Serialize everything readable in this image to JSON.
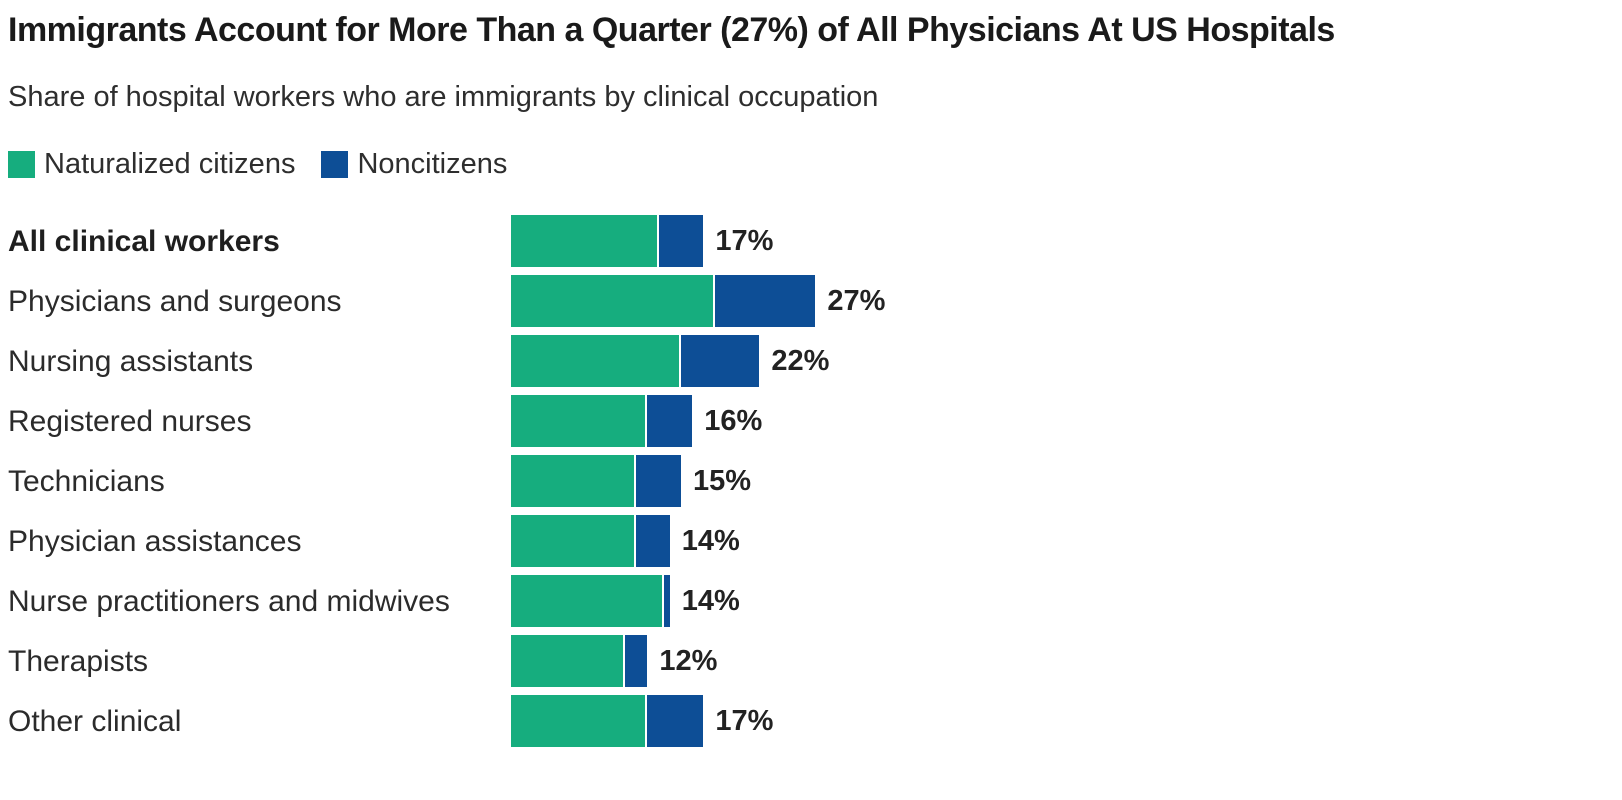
{
  "title": "Immigrants Account for More Than a Quarter (27%) of All Physicians At US Hospitals",
  "subtitle": "Share of hospital workers who are immigrants by clinical occupation",
  "chart_data": {
    "type": "bar",
    "orientation": "horizontal",
    "stacked": true,
    "legend_position": "top",
    "axes_visible": false,
    "value_suffix": "%",
    "categories": [
      "All clinical workers",
      "Physicians and surgeons",
      "Nursing assistants",
      "Registered nurses",
      "Technicians",
      "Physician assistances",
      "Nurse practitioners and midwives",
      "Therapists",
      "Other clinical"
    ],
    "series": [
      {
        "name": "Naturalized citizens",
        "color": "#16ad7e",
        "values": [
          13,
          18,
          15,
          12,
          11,
          11,
          13.5,
          10,
          12
        ]
      },
      {
        "name": "Noncitizens",
        "color": "#0d4e96",
        "values": [
          4,
          9,
          7,
          4,
          4,
          3,
          0.5,
          2,
          5
        ]
      }
    ],
    "totals": [
      17,
      27,
      22,
      16,
      15,
      14,
      14,
      12,
      17
    ],
    "total_labels": [
      "17%",
      "27%",
      "22%",
      "16%",
      "15%",
      "14%",
      "14%",
      "12%",
      "17%"
    ],
    "bold_category_index": 0,
    "xlim": [
      0,
      30
    ]
  }
}
